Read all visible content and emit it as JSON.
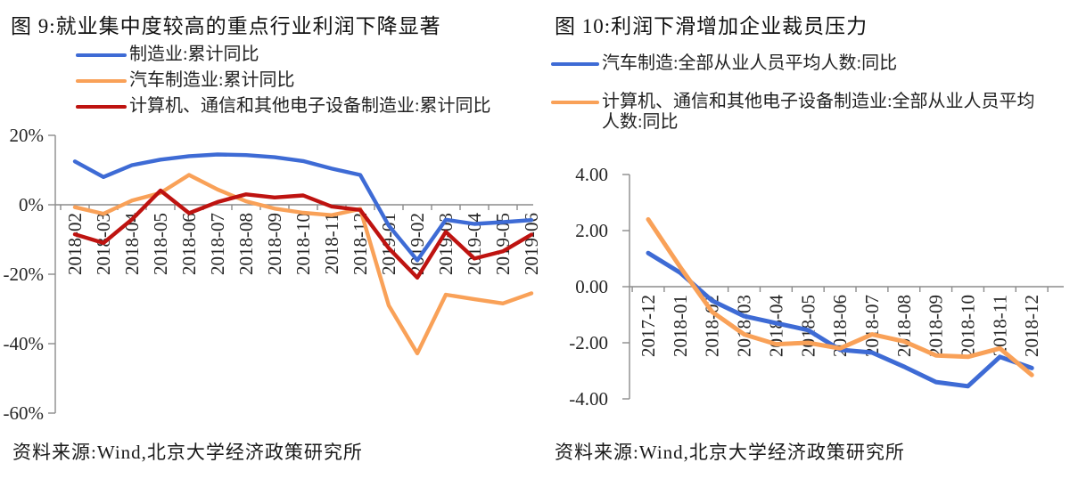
{
  "colors": {
    "blue": "#3e6bd5",
    "orange": "#f9a158",
    "red": "#be1310",
    "axis_gray": "#8c8c8c",
    "text": "#1a1a1a"
  },
  "chart_data": [
    {
      "id": "fig9",
      "type": "line",
      "title": "图 9:就业集中度较高的重点行业利润下降显著",
      "categories": [
        "2018-02",
        "2018-03",
        "2018-04",
        "2018-05",
        "2018-06",
        "2018-07",
        "2018-08",
        "2018-09",
        "2018-10",
        "2018-11",
        "2018-12",
        "2019-01",
        "2019-02",
        "2019-03",
        "2019-04",
        "2019-05",
        "2019-06"
      ],
      "series": [
        {
          "name": "制造业:累计同比",
          "color": "#3e6bd5",
          "values": [
            12.5,
            8.0,
            11.4,
            13.0,
            14.0,
            14.5,
            14.3,
            13.7,
            12.6,
            10.4,
            8.6,
            -6.0,
            -16.0,
            -4.3,
            -5.5,
            -5.0,
            -4.4
          ]
        },
        {
          "name": "汽车制造业:累计同比",
          "color": "#f9a158",
          "values": [
            -0.7,
            -2.6,
            1.2,
            3.4,
            8.6,
            4.4,
            1.0,
            -1.1,
            -2.3,
            -3.0,
            -1.2,
            -29.0,
            -42.8,
            -25.9,
            -27.2,
            -28.4,
            -25.5
          ]
        },
        {
          "name": "计算机、通信和其他电子设备制造业:累计同比",
          "color": "#be1310",
          "values": [
            -8.5,
            -11.0,
            -4.2,
            4.1,
            -2.4,
            0.8,
            3.0,
            2.1,
            2.7,
            -0.5,
            -1.5,
            -12.5,
            -21.0,
            -7.8,
            -15.5,
            -13.4,
            -8.6
          ]
        }
      ],
      "yticks": [
        20,
        0,
        -20,
        -40,
        -60
      ],
      "ytick_labels": [
        "20%",
        "0%",
        "-20%",
        "-40%",
        "-60%"
      ],
      "ylim": [
        -60,
        20
      ],
      "xlabel": "",
      "ylabel": "",
      "grid": false,
      "legend_position": "top-left",
      "source": "资料来源:Wind,北京大学经济政策研究所"
    },
    {
      "id": "fig10",
      "type": "line",
      "title": "图 10:利润下滑增加企业裁员压力",
      "categories": [
        "2017-12",
        "2018-01",
        "2018-02",
        "2018-03",
        "2018-04",
        "2018-05",
        "2018-06",
        "2018-07",
        "2018-08",
        "2018-09",
        "2018-10",
        "2018-11",
        "2018-12"
      ],
      "series": [
        {
          "name": "汽车制造:全部从业人员平均人数:同比",
          "color": "#3e6bd5",
          "values": [
            1.2,
            0.5,
            -0.5,
            -1.05,
            -1.3,
            -1.55,
            -2.25,
            -2.35,
            -2.85,
            -3.4,
            -3.55,
            -2.5,
            -2.9
          ]
        },
        {
          "name": "计算机、通信和其他电子设备制造业:全部从业人员平均人数:同比",
          "color": "#f9a158",
          "values": [
            2.4,
            0.7,
            -0.9,
            -1.7,
            -2.05,
            -2.0,
            -2.2,
            -1.7,
            -1.95,
            -2.45,
            -2.5,
            -2.2,
            -3.15
          ]
        }
      ],
      "yticks": [
        4,
        2,
        0,
        -2,
        -4
      ],
      "ytick_labels": [
        "4.00",
        "2.00",
        "0.00",
        "-2.00",
        "-4.00"
      ],
      "ylim": [
        -4,
        4
      ],
      "xlabel": "",
      "ylabel": "",
      "grid": false,
      "legend_position": "top-left",
      "source": "资料来源:Wind,北京大学经济政策研究所"
    }
  ]
}
